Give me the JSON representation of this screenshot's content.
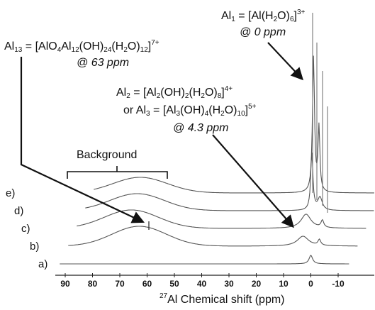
{
  "chart_data": {
    "type": "line",
    "xlabel": {
      "sup": "27",
      "text": "Al Chemical shift (ppm)"
    },
    "xlim": [
      95,
      -12
    ],
    "xticks": [
      90,
      80,
      70,
      60,
      50,
      40,
      30,
      20,
      10,
      0,
      -10
    ],
    "series": [
      {
        "name": "e)",
        "baseline_ppm_label": "e"
      },
      {
        "name": "d)"
      },
      {
        "name": "c)"
      },
      {
        "name": "b)"
      },
      {
        "name": "a)"
      }
    ],
    "series_note_peaks": {
      "e)": {
        "background_center": 75,
        "peak_ppm": 0
      },
      "d)": {
        "background_center": 73,
        "peak_ppm": 0
      },
      "c)": {
        "background_center": 72,
        "peak_ppm": 4.3
      },
      "b)": {
        "background_center": 68,
        "peak_ppm": 63
      },
      "a)": {
        "background_center": null,
        "peak_ppm": 0
      }
    },
    "annotations": {
      "al1": {
        "sym": "Al",
        "sub": "1",
        "formula_pre": " = [Al(H",
        "formula_sub1": "2",
        "formula_mid": "O)",
        "formula_sub2": "6",
        "formula_post": "]",
        "charge": "3+",
        "ppm": "@ 0 ppm"
      },
      "al13": {
        "sym": "Al",
        "sub": "13",
        "formula_pre": " = [AlO",
        "s1": "4",
        "p1": "Al",
        "s2": "12",
        "p2": "(OH)",
        "s3": "24",
        "p3": "(H",
        "s4": "2",
        "p4": "O)",
        "s5": "12",
        "p5": "]",
        "charge": "7+",
        "ppm": "@ 63 ppm"
      },
      "al2": {
        "sym": "Al",
        "sub": "2",
        "formula_pre": " = [Al",
        "s1": "2",
        "p1": "(OH)",
        "s2": "2",
        "p2": "(H",
        "s3": "2",
        "p3": "O)",
        "s4": "8",
        "p4": "]",
        "charge": "4+"
      },
      "al3": {
        "pre": "or ",
        "sym": "Al",
        "sub": "3",
        "formula_pre": " = [Al",
        "s1": "3",
        "p1": "(OH)",
        "s2": "4",
        "p2": "(H",
        "s3": "2",
        "p3": "O)",
        "s4": "10",
        "p4": "]",
        "charge": "5+",
        "ppm": "@ 4.3 ppm"
      },
      "background": "Background"
    }
  }
}
